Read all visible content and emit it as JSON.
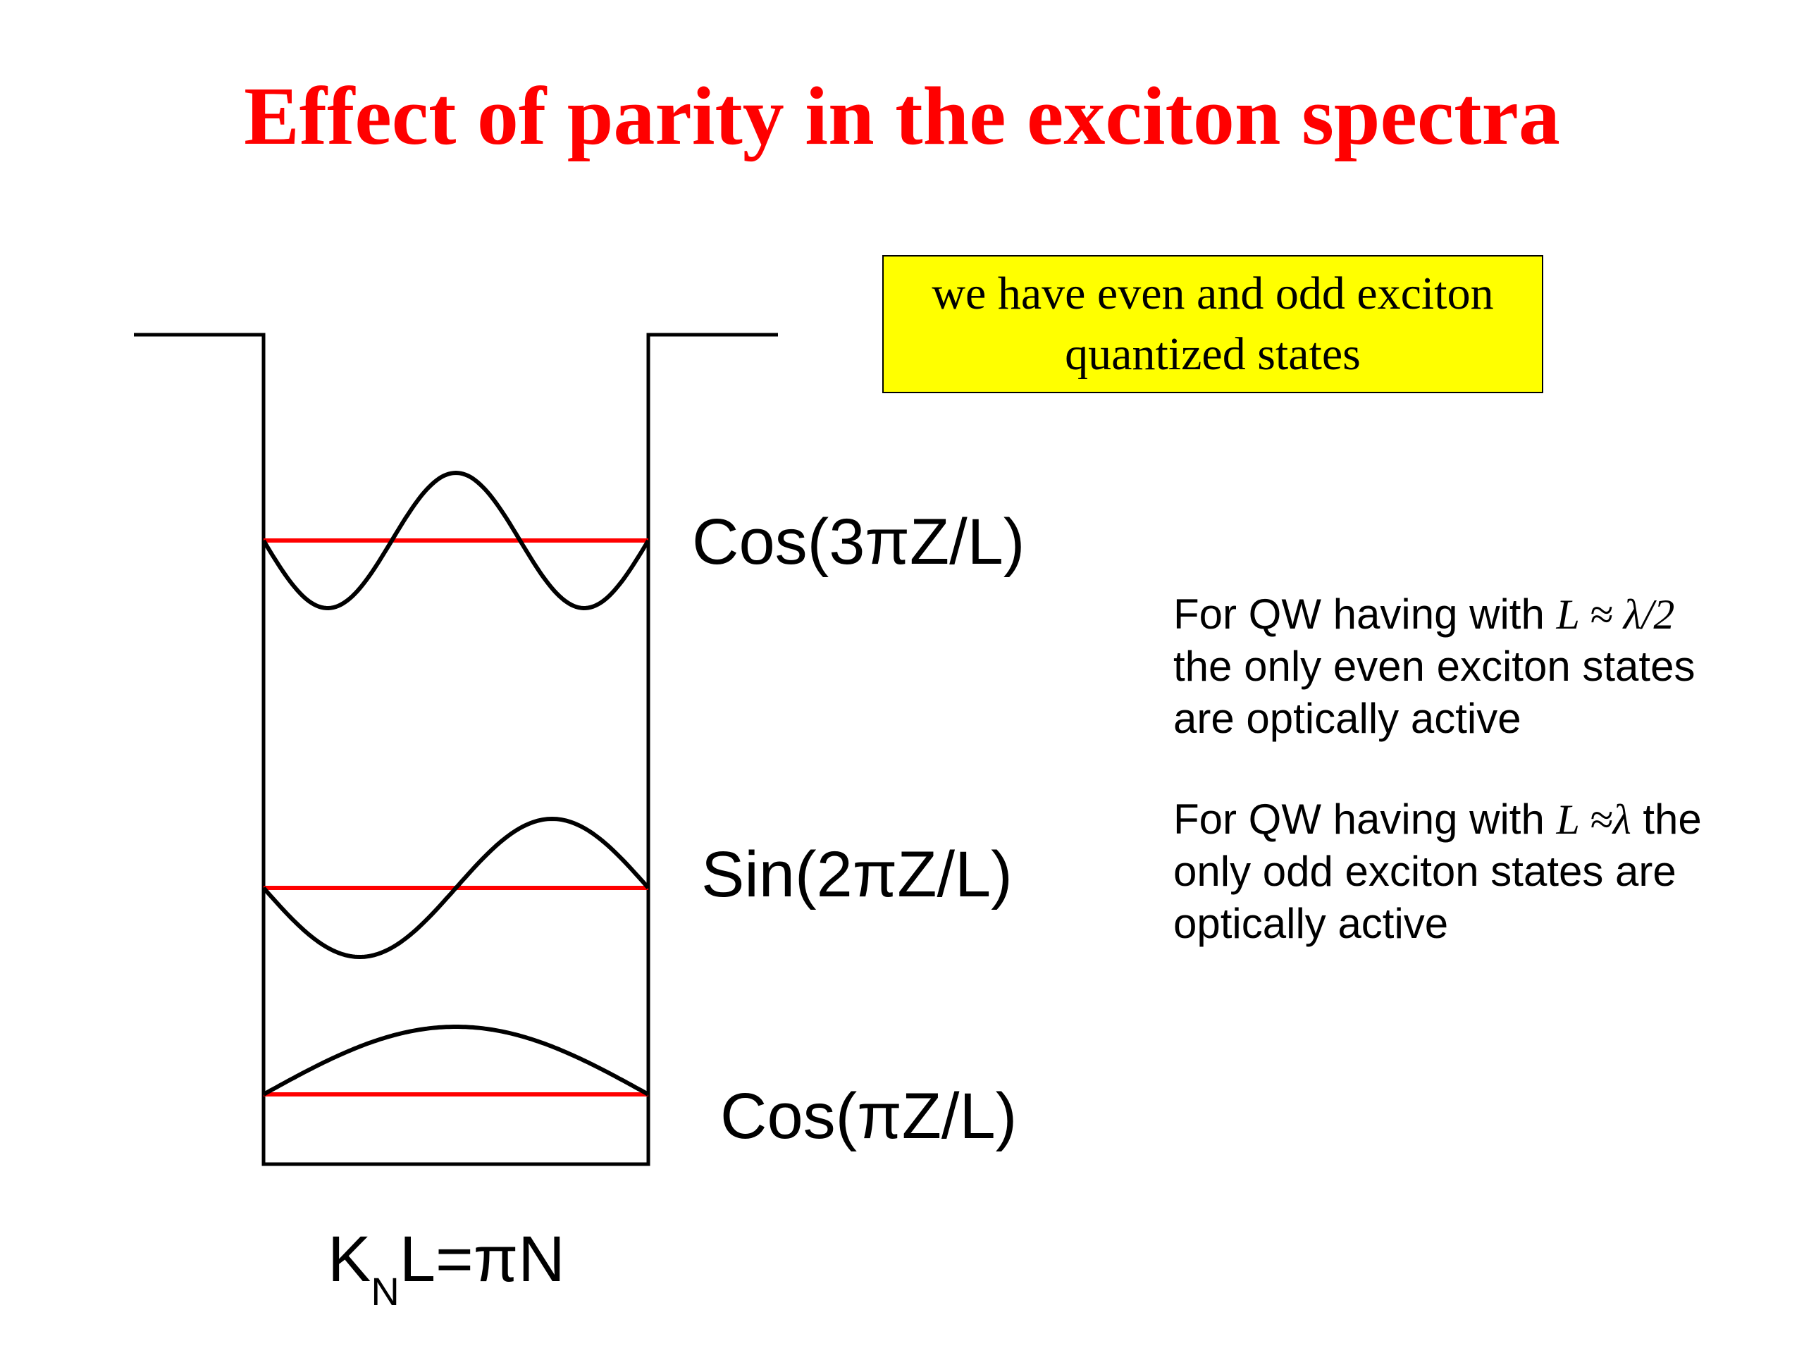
{
  "title": "Effect of parity in the exciton spectra",
  "callout": {
    "line1": "we have even and odd exciton",
    "line2": "quantized states"
  },
  "levels": [
    {
      "label": "Cos(3πZ/L)",
      "kind": "cos",
      "n": 3
    },
    {
      "label": "Sin(2πZ/L)",
      "kind": "sin",
      "n": 2
    },
    {
      "label": "Cos(πZ/L)",
      "kind": "cos",
      "n": 1
    }
  ],
  "bottom_formula": {
    "k": "K",
    "sub": "N",
    "rest": "L=πN"
  },
  "notes": [
    {
      "lines": [
        "For QW having with",
        "the only even exciton states",
        "are optically active"
      ],
      "math": "L ≈ λ/2"
    },
    {
      "lines": [
        "For QW having with",
        "the",
        "only odd exciton states are",
        "optically active"
      ],
      "math": "L ≈λ"
    }
  ],
  "colors": {
    "title": "#ff0000",
    "level_line": "#ff0000",
    "callout_bg": "#ffff00"
  }
}
